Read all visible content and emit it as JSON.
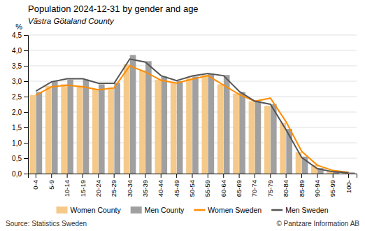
{
  "chart_data": {
    "type": "bar",
    "title": "Population 2024-12-31 by gender and age",
    "subtitle": "Västra Götaland County",
    "ylabel": "%",
    "annotations": [
      "Source: Statistics Sweden",
      "© Pantzare Information AB"
    ],
    "categories": [
      "0-4",
      "5-9",
      "10-14",
      "15-19",
      "20-24",
      "25-29",
      "30-34",
      "35-39",
      "40-44",
      "45-49",
      "50-54",
      "55-59",
      "60-64",
      "65-69",
      "70-74",
      "75-79",
      "80-84",
      "85-89",
      "90-94",
      "95-99",
      "100-"
    ],
    "series": [
      {
        "name": "Women County",
        "type": "bar",
        "color": "#f5c98a",
        "values": [
          2.55,
          2.85,
          2.9,
          2.85,
          2.75,
          2.8,
          3.55,
          3.35,
          3.05,
          2.95,
          3.1,
          3.2,
          2.9,
          2.6,
          2.35,
          2.2,
          1.65,
          0.7,
          0.28,
          0.1,
          0.05
        ]
      },
      {
        "name": "Men County",
        "type": "bar",
        "color": "#a0a0a0",
        "values": [
          2.65,
          3.0,
          3.05,
          3.05,
          2.9,
          2.95,
          3.85,
          3.65,
          3.15,
          3.0,
          3.15,
          3.25,
          3.2,
          2.65,
          2.35,
          2.25,
          1.45,
          0.55,
          0.18,
          0.07,
          0.04
        ]
      },
      {
        "name": "Women Sweden",
        "type": "line",
        "color": "#ff8c00",
        "values": [
          2.55,
          2.82,
          2.87,
          2.82,
          2.72,
          2.78,
          3.5,
          3.3,
          3.03,
          2.94,
          3.07,
          3.18,
          2.87,
          2.57,
          2.35,
          2.45,
          1.68,
          0.72,
          0.27,
          0.1,
          0.04
        ]
      },
      {
        "name": "Men Sweden",
        "type": "line",
        "color": "#555555",
        "values": [
          2.68,
          2.98,
          3.08,
          3.08,
          2.93,
          2.93,
          3.72,
          3.62,
          3.18,
          3.02,
          3.17,
          3.25,
          3.18,
          2.67,
          2.35,
          2.25,
          1.42,
          0.52,
          0.16,
          0.06,
          0.03
        ]
      }
    ],
    "ylim": [
      0.0,
      4.5
    ],
    "yticks": [
      {
        "value": 0.0,
        "label": "0,0"
      },
      {
        "value": 0.5,
        "label": "0,5"
      },
      {
        "value": 1.0,
        "label": "1,0"
      },
      {
        "value": 1.5,
        "label": "1,5"
      },
      {
        "value": 2.0,
        "label": "2,0"
      },
      {
        "value": 2.5,
        "label": "2,5"
      },
      {
        "value": 3.0,
        "label": "3,0"
      },
      {
        "value": 3.5,
        "label": "3,5"
      },
      {
        "value": 4.0,
        "label": "4,0"
      },
      {
        "value": 4.5,
        "label": "4,5"
      }
    ],
    "grid": true,
    "legend": "bottom"
  }
}
